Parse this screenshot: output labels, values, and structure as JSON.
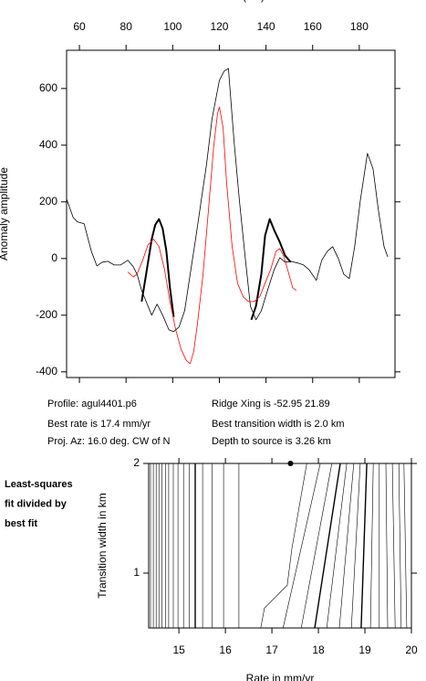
{
  "chart_data": [
    {
      "type": "line",
      "x_label": "Distance (km)",
      "y_label": "Anomaly amplitude",
      "xlim": [
        54.5,
        195.3
      ],
      "xticks": [
        60,
        80,
        100,
        120,
        140,
        160,
        180
      ],
      "ylim": [
        -420,
        735
      ],
      "yticks": [
        -400,
        -200,
        0,
        200,
        400,
        600
      ],
      "series": [
        {
          "color": "#000000",
          "width": 0.8,
          "x": [
            54.5,
            57.3,
            59.2,
            62.0,
            65.1,
            67.5,
            69.8,
            72.2,
            74.9,
            77.6,
            80.8,
            83.1,
            84.7,
            86.7,
            88.6,
            91.0,
            93.3,
            95.7,
            98.4,
            100.4,
            102.7,
            105.1,
            107.5,
            109.8,
            112.2,
            114.5,
            116.9,
            120.0,
            122.0,
            123.9,
            126.3,
            128.6,
            131.0,
            133.3,
            135.7,
            138.0,
            140.4,
            143.5,
            145.9,
            148.2,
            150.6,
            153.7,
            156.1,
            158.4,
            161.6,
            163.9,
            166.3,
            168.6,
            171.0,
            173.3,
            175.7,
            178.0,
            180.4,
            183.5,
            185.9,
            188.2,
            190.6,
            192.2
          ],
          "values": [
            210,
            145,
            129,
            123,
            26,
            -26,
            -13,
            -10,
            -23,
            -23,
            -6,
            -29,
            -55,
            -113,
            -152,
            -200,
            -161,
            -200,
            -252,
            -258,
            -242,
            -184,
            -55,
            68,
            203,
            332,
            494,
            629,
            661,
            671,
            413,
            203,
            10,
            -168,
            -216,
            -184,
            -119,
            -39,
            3,
            -13,
            -10,
            -16,
            -23,
            -39,
            -77,
            -6,
            26,
            42,
            0,
            -55,
            -71,
            42,
            203,
            371,
            316,
            171,
            42,
            6
          ]
        },
        {
          "color": "#000000",
          "width": 2,
          "x": [
            86.7,
            88.6,
            91.0,
            92.5,
            94.1,
            95.7,
            97.3,
            98.8,
            100.4,
            null,
            133.7,
            135.7,
            138.0,
            139.6,
            141.6,
            143.5,
            145.9,
            148.2,
            150.6
          ],
          "values": [
            -152,
            -55,
            68,
            119,
            139,
            106,
            26,
            -103,
            -206,
            null,
            -216,
            -168,
            -55,
            81,
            139,
            100,
            58,
            10,
            -13
          ]
        },
        {
          "color": "#ff0000",
          "width": 0.8,
          "x": [
            80.8,
            83.1,
            84.7,
            87.1,
            89.4,
            91.8,
            94.1,
            96.5,
            98.8,
            101.2,
            103.5,
            105.9,
            107.5,
            109.0,
            110.6,
            113.0,
            115.3,
            117.6,
            119.2,
            120.0,
            121.6,
            123.1,
            125.5,
            127.8,
            130.2,
            132.5,
            134.9,
            137.3,
            139.6,
            142.0,
            144.3,
            145.9,
            147.5,
            149.8,
            151.4,
            153.0
          ],
          "values": [
            -48,
            -65,
            -55,
            -6,
            48,
            68,
            42,
            -39,
            -152,
            -248,
            -319,
            -361,
            -371,
            -329,
            -232,
            -55,
            171,
            397,
            510,
            535,
            461,
            268,
            42,
            -87,
            -135,
            -152,
            -152,
            -135,
            -87,
            -39,
            26,
            35,
            10,
            -55,
            -103,
            -113
          ]
        }
      ],
      "annotations": [
        "Profile: agul4401.p6",
        "Best rate is 17.4 mm/yr",
        "Proj. Az: 16.0 deg. CW of N",
        "Ridge Xing is -52.95 21.89",
        "Best transition width is 2.0 km",
        "Depth to source is   3.26 km"
      ]
    },
    {
      "type": "contour",
      "x_label": "Rate in mm/yr",
      "y_label": "Transition width in km",
      "side_text": [
        "Least-squares",
        "fit divided by",
        "best fit"
      ],
      "xlim": [
        14.35,
        20
      ],
      "xticks": [
        15,
        16,
        17,
        18,
        19,
        20
      ],
      "ylim": [
        0.5,
        2
      ],
      "yticks": [
        1,
        2
      ],
      "marker": {
        "x": 17.4,
        "y": 2
      },
      "contours": [
        {
          "x": [
            14.39,
            14.39
          ],
          "y": [
            2,
            0.5
          ]
        },
        {
          "x": [
            14.45,
            14.45
          ],
          "y": [
            2,
            0.5
          ]
        },
        {
          "x": [
            14.51,
            14.51
          ],
          "y": [
            2,
            0.5
          ]
        },
        {
          "x": [
            14.57,
            14.57
          ],
          "y": [
            2,
            0.5
          ]
        },
        {
          "x": [
            14.63,
            14.63
          ],
          "y": [
            2,
            0.5
          ]
        },
        {
          "x": [
            14.71,
            14.71
          ],
          "y": [
            2,
            0.5
          ]
        },
        {
          "x": [
            14.78,
            14.78
          ],
          "y": [
            2,
            0.5
          ]
        },
        {
          "x": [
            14.88,
            14.88
          ],
          "y": [
            2,
            0.5
          ]
        },
        {
          "x": [
            14.98,
            14.98
          ],
          "y": [
            2,
            0.5
          ]
        },
        {
          "x": [
            15.1,
            15.1
          ],
          "y": [
            2,
            0.5
          ]
        },
        {
          "x": [
            15.22,
            15.22
          ],
          "y": [
            2,
            0.5
          ]
        },
        {
          "x": [
            15.35,
            15.35
          ],
          "y": [
            2,
            0.5
          ],
          "bold": true
        },
        {
          "x": [
            15.51,
            15.51
          ],
          "y": [
            2,
            0.5
          ]
        },
        {
          "x": [
            15.71,
            15.71
          ],
          "y": [
            2,
            0.5
          ]
        },
        {
          "x": [
            15.96,
            15.96
          ],
          "y": [
            2,
            0.5
          ]
        },
        {
          "x": [
            16.29,
            16.29
          ],
          "y": [
            2,
            0.5
          ]
        },
        {
          "x": [
            17.75,
            17.43,
            17.33,
            16.84,
            16.76
          ],
          "y": [
            2,
            1.225,
            0.89,
            0.68,
            0.5
          ]
        },
        {
          "x": [
            18.04,
            17.24
          ],
          "y": [
            2,
            0.5
          ]
        },
        {
          "x": [
            18.29,
            17.63
          ],
          "y": [
            2,
            0.5
          ]
        },
        {
          "x": [
            18.47,
            17.92
          ],
          "y": [
            2,
            0.5
          ],
          "bold": true
        },
        {
          "x": [
            18.61,
            18.18
          ],
          "y": [
            2,
            0.5
          ]
        },
        {
          "x": [
            18.76,
            18.45
          ],
          "y": [
            2,
            0.5
          ]
        },
        {
          "x": [
            18.9,
            18.71
          ],
          "y": [
            2,
            0.5
          ]
        },
        {
          "x": [
            19.04,
            18.92
          ],
          "y": [
            2,
            0.5
          ],
          "bold": true
        },
        {
          "x": [
            19.18,
            19.12
          ],
          "y": [
            2,
            0.5
          ]
        },
        {
          "x": [
            19.31,
            19.31
          ],
          "y": [
            2,
            0.5
          ]
        },
        {
          "x": [
            19.45,
            19.49
          ],
          "y": [
            2,
            0.5
          ]
        },
        {
          "x": [
            19.59,
            19.65
          ],
          "y": [
            2,
            0.5
          ]
        },
        {
          "x": [
            19.73,
            19.78
          ],
          "y": [
            2,
            0.5
          ]
        },
        {
          "x": [
            19.84,
            19.9
          ],
          "y": [
            2,
            0.5
          ]
        }
      ]
    }
  ]
}
